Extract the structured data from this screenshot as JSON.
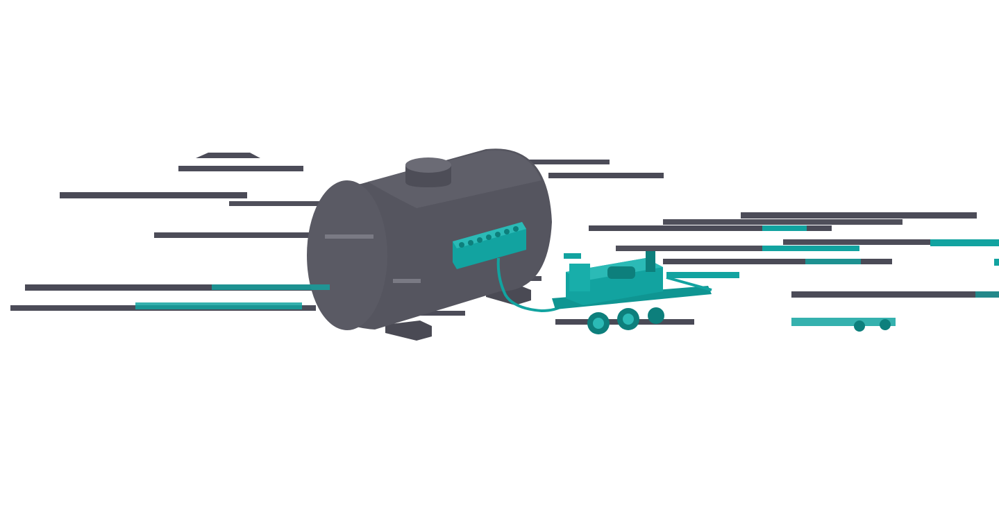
{
  "viewer": {
    "background": "#ffffff",
    "colors": {
      "tank_body": "#55555f",
      "tank_dark": "#3f3f49",
      "tank_light": "#6a6a74",
      "equipment": "#12a3a0",
      "equipment_dark": "#0d7f7c",
      "artifact": "#4c4c58"
    },
    "models": [
      {
        "name": "storage-tank",
        "color_key": "tank_body"
      },
      {
        "name": "pump-trailer",
        "color_key": "equipment"
      },
      {
        "name": "manifold",
        "color_key": "equipment"
      }
    ]
  }
}
